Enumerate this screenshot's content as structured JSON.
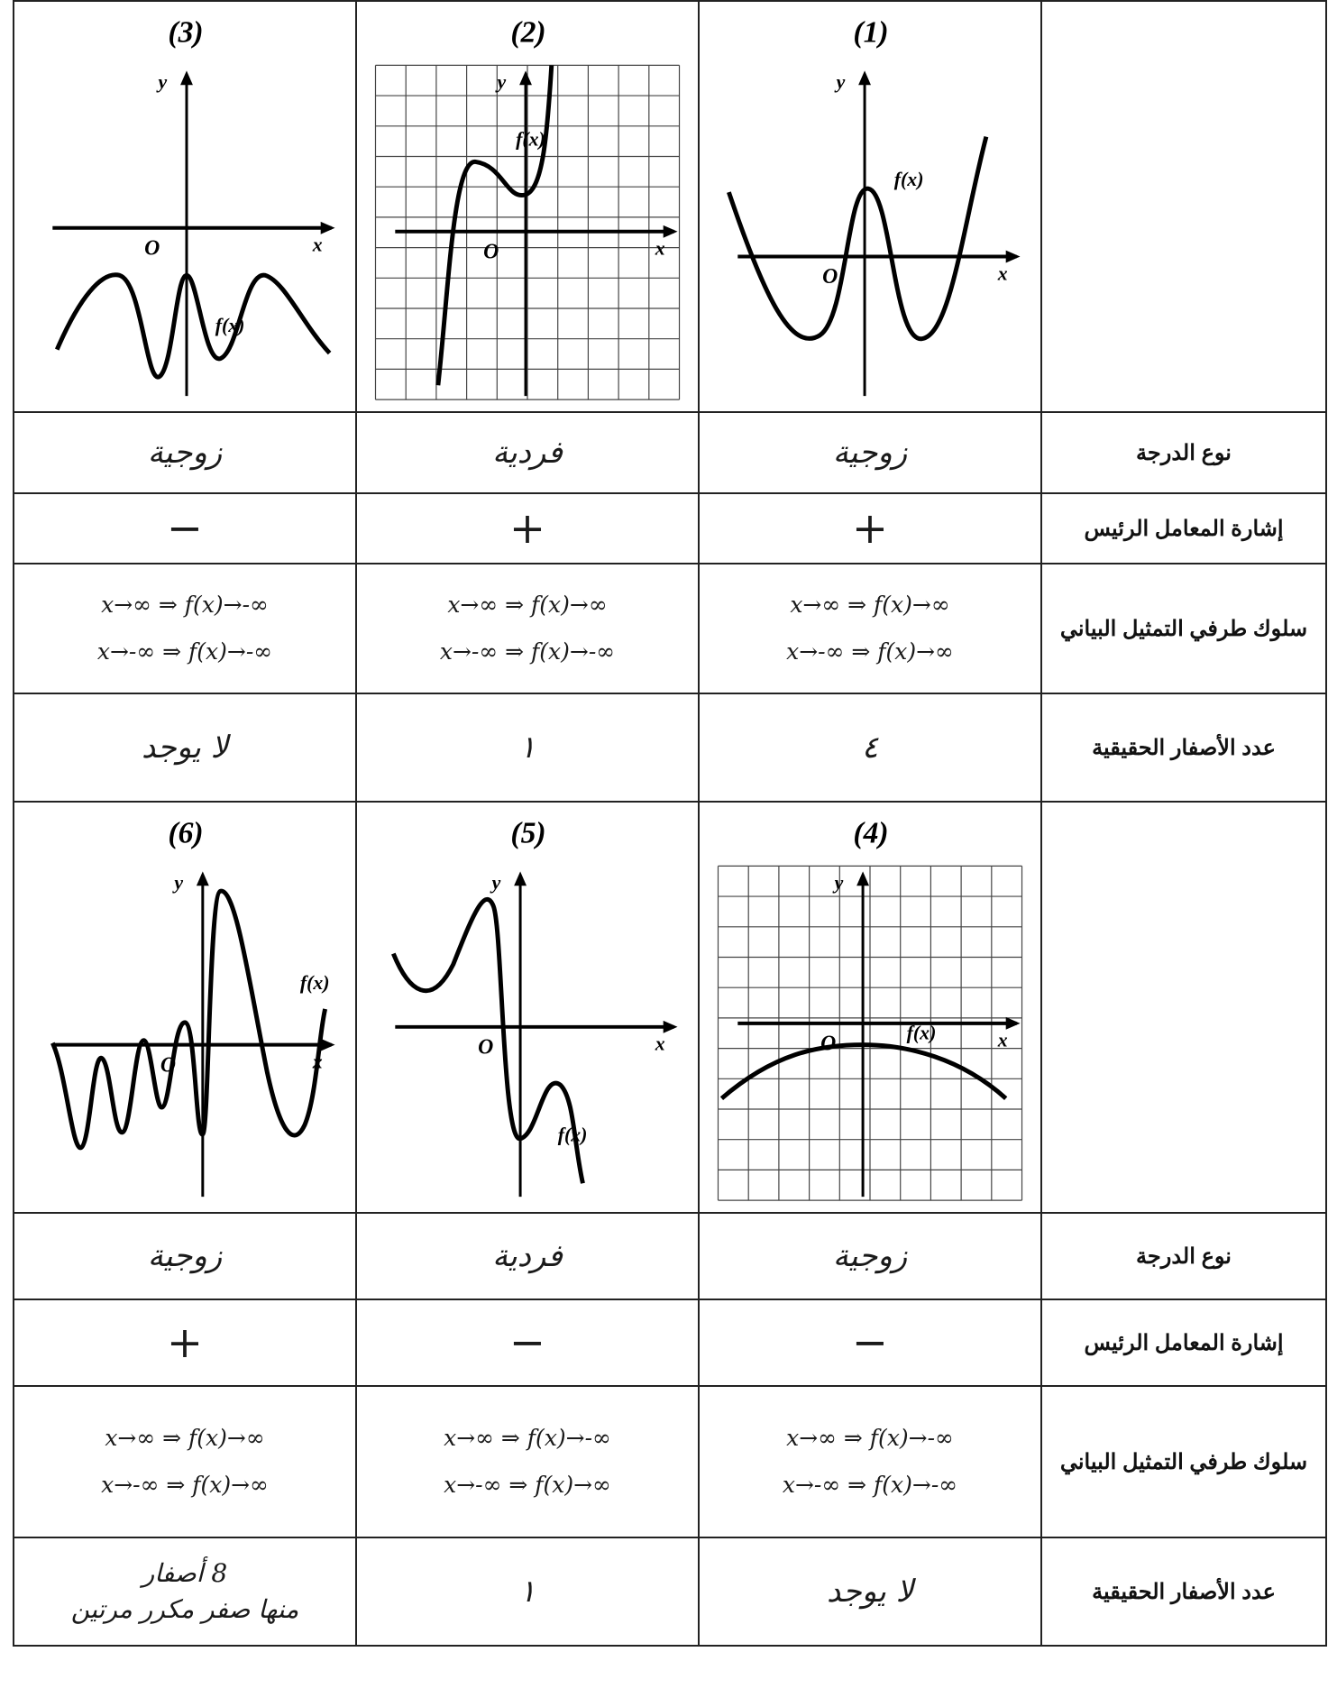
{
  "sections": [
    {
      "graphs": [
        {
          "label": "(1)",
          "y_axis": "y",
          "x_axis": "x",
          "origin": "O",
          "function": "f(x)"
        },
        {
          "label": "(2)",
          "y_axis": "y",
          "x_axis": "x",
          "origin": "O",
          "function": "f(x)"
        },
        {
          "label": "(3)",
          "y_axis": "y",
          "x_axis": "x",
          "origin": "O",
          "function": "f(x)"
        }
      ],
      "rows": [
        {
          "label": "نوع الدرجة",
          "cells": [
            "زوجية",
            "فردية",
            "زوجية"
          ]
        },
        {
          "label": "إشارة المعامل الرئيس",
          "cells": [
            "+",
            "+",
            "−"
          ]
        },
        {
          "label": "سلوك طرفي التمثيل البياني",
          "cells": [
            [
              "x→∞ ⇒ f(x)→∞",
              "x→-∞ ⇒ f(x)→∞"
            ],
            [
              "x→∞ ⇒ f(x)→∞",
              "x→-∞ ⇒ f(x)→-∞"
            ],
            [
              "x→∞ ⇒ f(x)→-∞",
              "x→-∞ ⇒ f(x)→-∞"
            ]
          ]
        },
        {
          "label": "عدد الأصفار الحقيقية",
          "cells": [
            "٤",
            "١",
            "لا يوجد"
          ]
        }
      ]
    },
    {
      "graphs": [
        {
          "label": "(4)",
          "y_axis": "y",
          "x_axis": "x",
          "origin": "O",
          "function": "f(x)"
        },
        {
          "label": "(5)",
          "y_axis": "y",
          "x_axis": "x",
          "origin": "O",
          "function": "f(x)"
        },
        {
          "label": "(6)",
          "y_axis": "y",
          "x_axis": "x",
          "origin": "O",
          "function": "f(x)"
        }
      ],
      "rows": [
        {
          "label": "نوع الدرجة",
          "cells": [
            "زوجية",
            "فردية",
            "زوجية"
          ]
        },
        {
          "label": "إشارة المعامل الرئيس",
          "cells": [
            "−",
            "−",
            "+"
          ]
        },
        {
          "label": "سلوك طرفي التمثيل البياني",
          "cells": [
            [
              "x→∞ ⇒ f(x)→-∞",
              "x→-∞ ⇒ f(x)→-∞"
            ],
            [
              "x→∞ ⇒ f(x)→-∞",
              "x→-∞ ⇒ f(x)→∞"
            ],
            [
              "x→∞ ⇒ f(x)→∞",
              "x→-∞ ⇒ f(x)→∞"
            ]
          ]
        },
        {
          "label": "عدد الأصفار الحقيقية",
          "cells": [
            "لا يوجد",
            "١",
            [
              "8 أصفار",
              "منها صفر مكرر مرتين"
            ]
          ]
        }
      ]
    }
  ]
}
